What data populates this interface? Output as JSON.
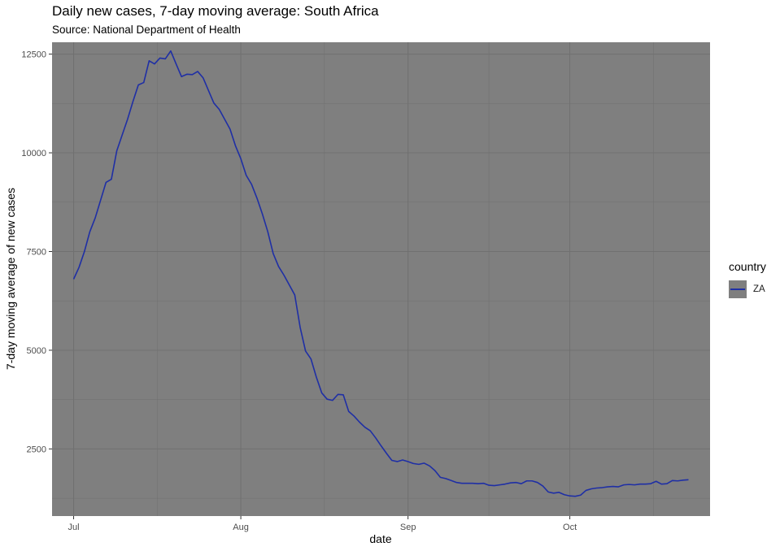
{
  "chart_data": {
    "type": "line",
    "title": "Daily new cases, 7-day moving average: South Africa",
    "subtitle": "Source: National Department of Health",
    "xlabel": "date",
    "ylabel": "7-day moving average of new cases",
    "x_ticks": [
      "Jul",
      "Aug",
      "Sep",
      "Oct"
    ],
    "y_ticks": [
      "2500",
      "5000",
      "7500",
      "10000",
      "12500"
    ],
    "ylim": [
      800,
      12800
    ],
    "xlim": [
      "2020-06-27",
      "2020-10-27"
    ],
    "legend": {
      "title": "country",
      "position": "right"
    },
    "colors": {
      "panel": "#7f7f7f",
      "line": "#1f2fa5",
      "grid": "#707070"
    },
    "series": [
      {
        "name": "ZA",
        "x": [
          "2020-07-01",
          "2020-07-02",
          "2020-07-03",
          "2020-07-04",
          "2020-07-05",
          "2020-07-06",
          "2020-07-07",
          "2020-07-08",
          "2020-07-09",
          "2020-07-10",
          "2020-07-11",
          "2020-07-12",
          "2020-07-13",
          "2020-07-14",
          "2020-07-15",
          "2020-07-16",
          "2020-07-17",
          "2020-07-18",
          "2020-07-19",
          "2020-07-20",
          "2020-07-21",
          "2020-07-22",
          "2020-07-23",
          "2020-07-24",
          "2020-07-25",
          "2020-07-26",
          "2020-07-27",
          "2020-07-28",
          "2020-07-29",
          "2020-07-30",
          "2020-07-31",
          "2020-08-01",
          "2020-08-02",
          "2020-08-03",
          "2020-08-04",
          "2020-08-05",
          "2020-08-06",
          "2020-08-07",
          "2020-08-08",
          "2020-08-09",
          "2020-08-10",
          "2020-08-11",
          "2020-08-12",
          "2020-08-13",
          "2020-08-14",
          "2020-08-15",
          "2020-08-16",
          "2020-08-17",
          "2020-08-18",
          "2020-08-19",
          "2020-08-20",
          "2020-08-21",
          "2020-08-22",
          "2020-08-23",
          "2020-08-24",
          "2020-08-25",
          "2020-08-26",
          "2020-08-27",
          "2020-08-28",
          "2020-08-29",
          "2020-08-30",
          "2020-08-31",
          "2020-09-01",
          "2020-09-02",
          "2020-09-03",
          "2020-09-04",
          "2020-09-05",
          "2020-09-06",
          "2020-09-07",
          "2020-09-08",
          "2020-09-09",
          "2020-09-10",
          "2020-09-11",
          "2020-09-12",
          "2020-09-13",
          "2020-09-14",
          "2020-09-15",
          "2020-09-16",
          "2020-09-17",
          "2020-09-18",
          "2020-09-19",
          "2020-09-20",
          "2020-09-21",
          "2020-09-22",
          "2020-09-23",
          "2020-09-24",
          "2020-09-25",
          "2020-09-26",
          "2020-09-27",
          "2020-09-28",
          "2020-09-29",
          "2020-09-30",
          "2020-10-01",
          "2020-10-02",
          "2020-10-03",
          "2020-10-04",
          "2020-10-05",
          "2020-10-06",
          "2020-10-07",
          "2020-10-08",
          "2020-10-09",
          "2020-10-10",
          "2020-10-11",
          "2020-10-12",
          "2020-10-13",
          "2020-10-14",
          "2020-10-15",
          "2020-10-16",
          "2020-10-17",
          "2020-10-18",
          "2020-10-19",
          "2020-10-20",
          "2020-10-21",
          "2020-10-22",
          "2020-10-23"
        ],
        "values": [
          6800,
          7100,
          7500,
          8000,
          8350,
          8800,
          9250,
          9330,
          10050,
          10450,
          10850,
          11300,
          11720,
          11780,
          12330,
          12250,
          12400,
          12380,
          12580,
          12250,
          11930,
          11990,
          11980,
          12060,
          11900,
          11580,
          11260,
          11100,
          10850,
          10600,
          10180,
          9850,
          9430,
          9200,
          8850,
          8450,
          8000,
          7450,
          7120,
          6900,
          6650,
          6400,
          5580,
          4980,
          4780,
          4320,
          3920,
          3760,
          3730,
          3880,
          3870,
          3450,
          3330,
          3180,
          3050,
          2960,
          2780,
          2580,
          2390,
          2210,
          2180,
          2220,
          2180,
          2130,
          2110,
          2140,
          2070,
          1950,
          1780,
          1750,
          1700,
          1650,
          1630,
          1630,
          1630,
          1620,
          1630,
          1580,
          1570,
          1590,
          1610,
          1640,
          1650,
          1620,
          1690,
          1690,
          1650,
          1560,
          1410,
          1380,
          1400,
          1340,
          1310,
          1300,
          1330,
          1450,
          1490,
          1510,
          1520,
          1540,
          1550,
          1540,
          1590,
          1600,
          1590,
          1610,
          1610,
          1620,
          1680,
          1610,
          1620,
          1700,
          1690,
          1710,
          1720
        ]
      }
    ]
  }
}
